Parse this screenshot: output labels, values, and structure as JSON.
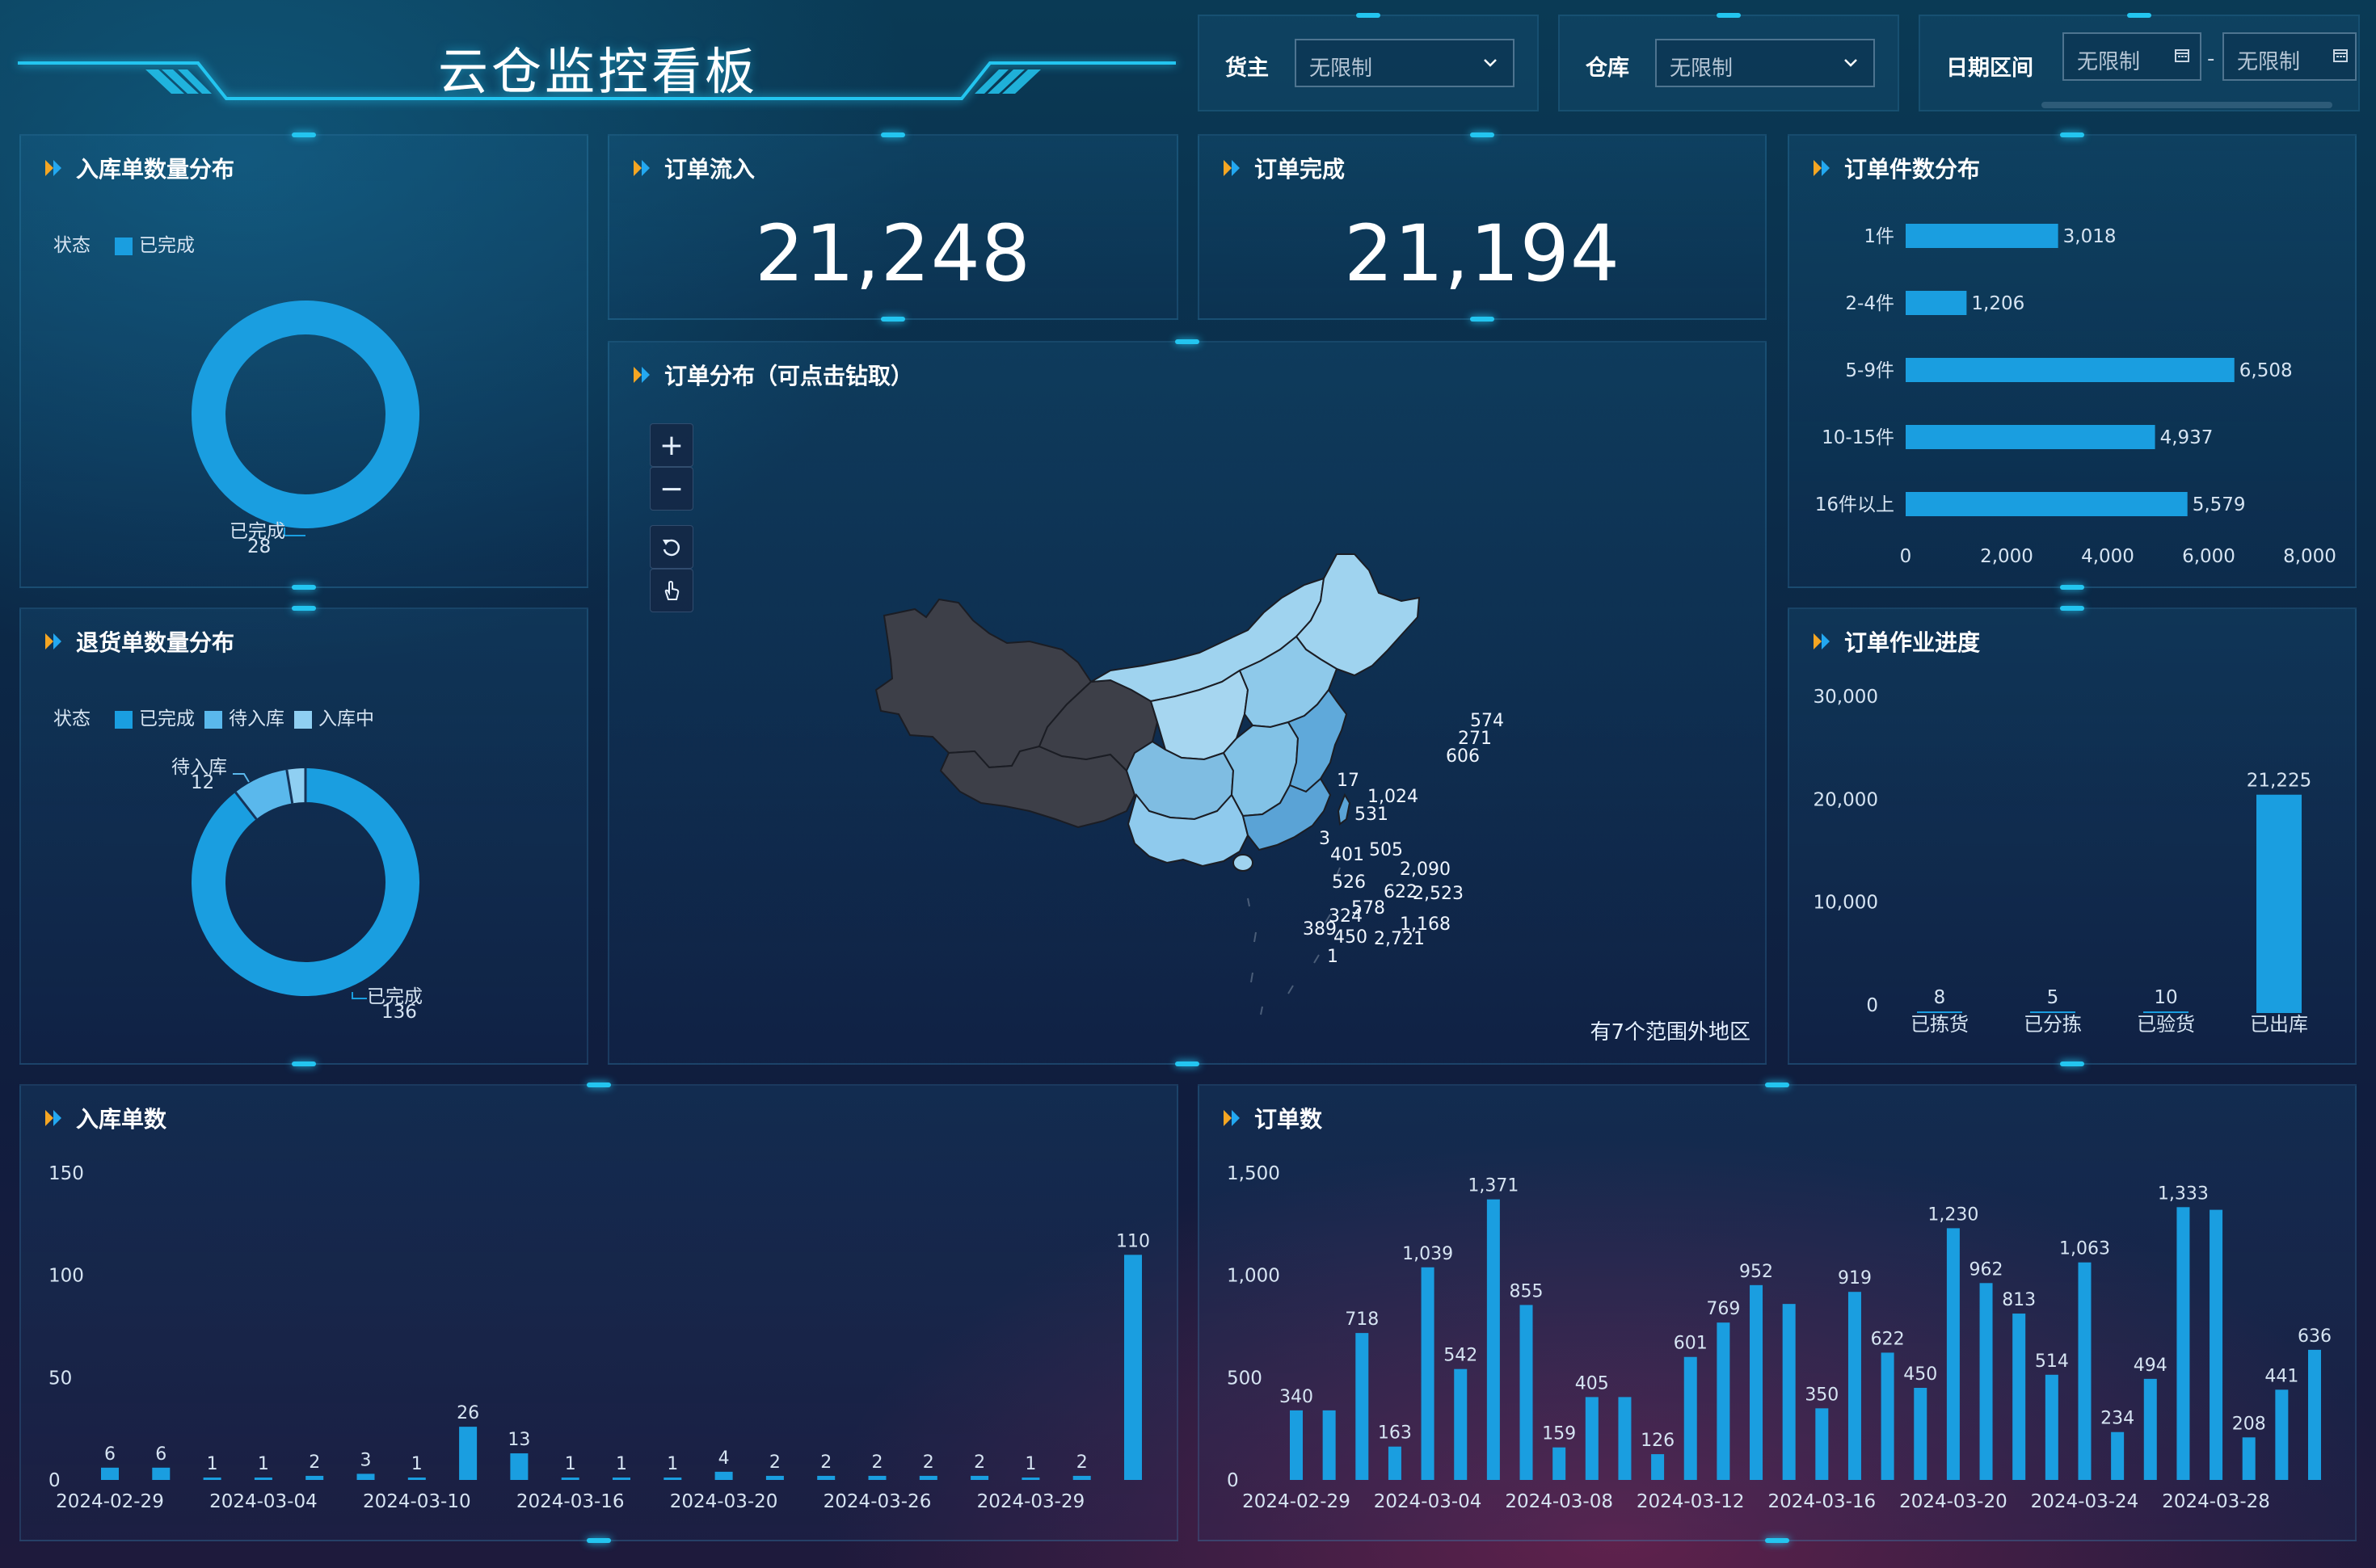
{
  "header": {
    "title": "云仓监控看板",
    "filters": {
      "owner_label": "货主",
      "owner_value": "无限制",
      "warehouse_label": "仓库",
      "warehouse_value": "无限制",
      "date_label": "日期区间",
      "date_start": "无限制",
      "date_sep": "-",
      "date_end": "无限制"
    }
  },
  "colors": {
    "accent": "#1a9ee0",
    "light_blue": "#5ab8ec",
    "pale_blue": "#8fcff2",
    "title_glow": "#23c5f0"
  },
  "inbound_dist": {
    "title": "入库单数量分布",
    "legend_label": "状态",
    "legend": [
      "已完成"
    ],
    "slices": [
      {
        "name": "已完成",
        "value": 28
      }
    ],
    "label_name": "已完成",
    "label_value": "28"
  },
  "return_dist": {
    "title": "退货单数量分布",
    "legend_label": "状态",
    "legend": [
      "已完成",
      "待入库",
      "入库中"
    ],
    "slices": [
      {
        "name": "已完成",
        "value": 136
      },
      {
        "name": "待入库",
        "value": 12
      },
      {
        "name": "入库中",
        "value": 4
      }
    ],
    "label_top_name": "待入库",
    "label_top_value": "12",
    "label_bottom_name": "已完成",
    "label_bottom_value": "136"
  },
  "order_in": {
    "title": "订单流入",
    "value": "21,248"
  },
  "order_done": {
    "title": "订单完成",
    "value": "21,194"
  },
  "order_map": {
    "title": "订单分布（可点击钻取）",
    "footer": "有7个范围外地区",
    "zoom_in": "+",
    "zoom_out": "−",
    "region_labels": [
      "574",
      "271",
      "606",
      "17",
      "1,024",
      "531",
      "3",
      "401",
      "505",
      "2,090",
      "526",
      "622",
      "2,523",
      "578",
      "324",
      "1,168",
      "389",
      "450",
      "2,721",
      "1"
    ]
  },
  "piece_dist": {
    "title": "订单件数分布"
  },
  "progress": {
    "title": "订单作业进度"
  },
  "inbound_count": {
    "title": "入库单数"
  },
  "order_count": {
    "title": "订单数"
  },
  "chart_data": [
    {
      "id": "piece_dist",
      "type": "bar",
      "orientation": "horizontal",
      "categories": [
        "1件",
        "2-4件",
        "5-9件",
        "10-15件",
        "16件以上"
      ],
      "values": [
        3018,
        1206,
        6508,
        4937,
        5579
      ],
      "value_labels": [
        "3,018",
        "1,206",
        "6,508",
        "4,937",
        "5,579"
      ],
      "xlim": [
        0,
        8000
      ],
      "xticks": [
        "0",
        "2,000",
        "4,000",
        "6,000",
        "8,000"
      ]
    },
    {
      "id": "progress",
      "type": "bar",
      "categories": [
        "已拣货",
        "已分拣",
        "已验货",
        "已出库"
      ],
      "values": [
        8,
        5,
        10,
        21225
      ],
      "value_labels": [
        "8",
        "5",
        "10",
        "21,225"
      ],
      "ylim": [
        0,
        30000
      ],
      "yticks": [
        "0",
        "10,000",
        "20,000",
        "30,000"
      ]
    },
    {
      "id": "inbound_count",
      "type": "bar",
      "values": [
        6,
        6,
        1,
        1,
        2,
        3,
        1,
        26,
        13,
        1,
        1,
        1,
        4,
        2,
        2,
        2,
        2,
        2,
        1,
        2,
        110
      ],
      "value_labels": [
        "6",
        "6",
        "1",
        "1",
        "2",
        "3",
        "1",
        "26",
        "13",
        "1",
        "1",
        "1",
        "4",
        "2",
        "2",
        "2",
        "2",
        "2",
        "1",
        "2",
        "110"
      ],
      "xtick_labels": [
        "2024-02-29",
        "2024-03-04",
        "2024-03-10",
        "2024-03-16",
        "2024-03-20",
        "2024-03-26",
        "2024-03-29"
      ],
      "ylim": [
        0,
        150
      ],
      "yticks": [
        "0",
        "50",
        "100",
        "150"
      ]
    },
    {
      "id": "order_count",
      "type": "bar",
      "values": [
        340,
        340,
        718,
        163,
        1039,
        542,
        1371,
        855,
        159,
        405,
        405,
        126,
        601,
        769,
        952,
        860,
        350,
        919,
        622,
        450,
        1230,
        962,
        813,
        514,
        1063,
        234,
        494,
        1333,
        1320,
        208,
        441,
        636
      ],
      "value_labels": [
        "340",
        "",
        "718",
        "163",
        "1,039",
        "542",
        "1,371",
        "855",
        "159",
        "405",
        "",
        "126",
        "601",
        "769",
        "952",
        "",
        "350",
        "919",
        "622",
        "450",
        "1,230",
        "962",
        "813",
        "514",
        "1,063",
        "234",
        "494",
        "1,333",
        "",
        "208",
        "441",
        "636"
      ],
      "xtick_labels": [
        "2024-02-29",
        "2024-03-04",
        "2024-03-08",
        "2024-03-12",
        "2024-03-16",
        "2024-03-20",
        "2024-03-24",
        "2024-03-28"
      ],
      "ylim": [
        0,
        1500
      ],
      "yticks": [
        "0",
        "500",
        "1,000",
        "1,500"
      ]
    }
  ]
}
